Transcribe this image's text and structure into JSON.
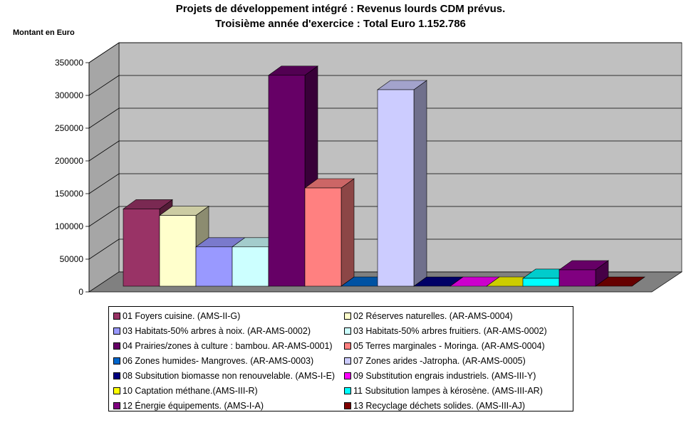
{
  "chart_data": {
    "type": "bar",
    "title": "Projets de développement intégré : Revenus lourds CDM prévus.",
    "subtitle": "Troisième année d'exercice : Total  Euro 1.152.786",
    "ylabel": "Montant en Euro",
    "xlabel": "",
    "ylim": [
      0,
      350000
    ],
    "yticks": [
      0,
      50000,
      100000,
      150000,
      200000,
      250000,
      300000,
      350000
    ],
    "grid": true,
    "legend_position": "bottom",
    "series": [
      {
        "name": "01 Foyers cuisine. (AMS-II-G)",
        "color": "#993366",
        "value": 118000
      },
      {
        "name": "02 Réserves naturelles. (AR-AMS-0004)",
        "color": "#FFFFCC",
        "value": 108000
      },
      {
        "name": "03 Habitats-50% arbres à noix. (AR-AMS-0002)",
        "color": "#9999FF",
        "value": 60000
      },
      {
        "name": "03 Habitats-50% arbres fruitiers. (AR-AMS-0002)",
        "color": "#CCFFFF",
        "value": 60000
      },
      {
        "name": "04 Prairies/zones à culture : bambou. AR-AMS-0001)",
        "color": "#660066",
        "value": 322000
      },
      {
        "name": "05 Terres marginales - Moringa. (AR-AMS-0004)",
        "color": "#FF8080",
        "value": 150000
      },
      {
        "name": "06 Zones humides- Mangroves. (AR-AMS-0003)",
        "color": "#0066CC",
        "value": 0
      },
      {
        "name": "07 Zones arides -Jatropha. (AR-AMS-0005)",
        "color": "#CCCCFF",
        "value": 300000
      },
      {
        "name": "08 Subsitution biomasse non renouvelable. (AMS-I-E)",
        "color": "#000080",
        "value": 0
      },
      {
        "name": "09 Substitution engrais industriels. (AMS-III-Y)",
        "color": "#FF00FF",
        "value": 0
      },
      {
        "name": "10 Captation méthane.(AMS-III-R)",
        "color": "#FFFF00",
        "value": 0
      },
      {
        "name": "11 Subsitution lampes à kérosène. (AMS-III-AR)",
        "color": "#00FFFF",
        "value": 12000
      },
      {
        "name": "12 Énergie équipements. (AMS-I-A)",
        "color": "#800080",
        "value": 25000
      },
      {
        "name": "13 Recyclage déchets solides. (AMS-III-AJ)",
        "color": "#800000",
        "value": 0
      }
    ]
  }
}
